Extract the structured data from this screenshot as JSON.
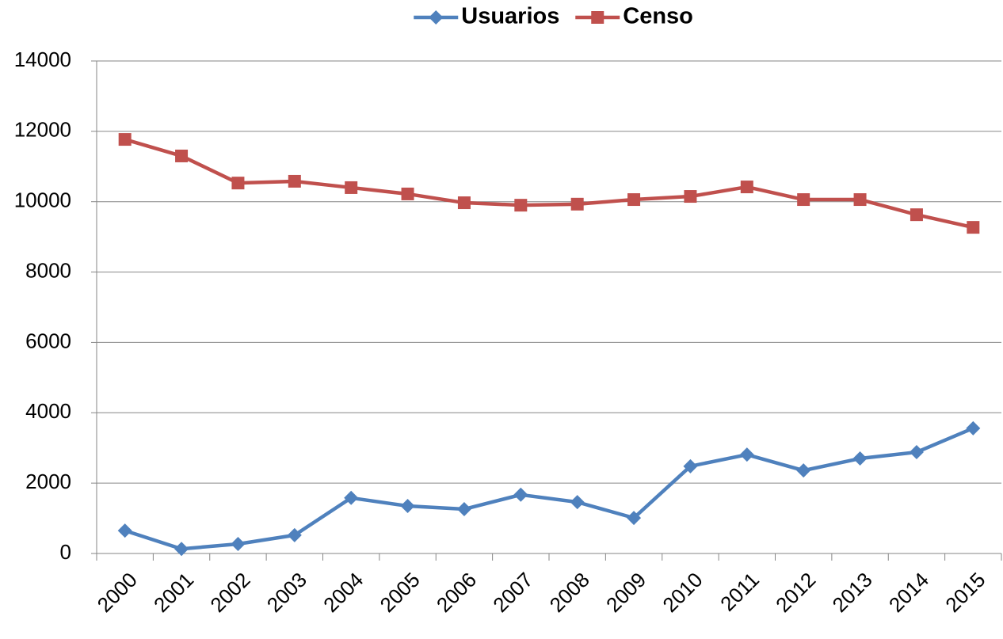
{
  "chart_data": {
    "type": "line",
    "categories": [
      "2000",
      "2001",
      "2002",
      "2003",
      "2004",
      "2005",
      "2006",
      "2007",
      "2008",
      "2009",
      "2010",
      "2011",
      "2012",
      "2013",
      "2014",
      "2015"
    ],
    "series": [
      {
        "name": "Usuarios",
        "color": "#4f81bd",
        "marker": "diamond",
        "values": [
          650,
          130,
          270,
          520,
          1580,
          1350,
          1260,
          1670,
          1460,
          1010,
          2480,
          2810,
          2360,
          2700,
          2880,
          3560
        ]
      },
      {
        "name": "Censo",
        "color": "#c0504d",
        "marker": "square",
        "values": [
          11770,
          11300,
          10530,
          10580,
          10400,
          10220,
          9970,
          9900,
          9930,
          10060,
          10150,
          10420,
          10060,
          10060,
          9630,
          9270
        ]
      }
    ],
    "ylim": [
      0,
      14000
    ],
    "yticks": [
      0,
      2000,
      4000,
      6000,
      8000,
      10000,
      12000,
      14000
    ],
    "grid": true,
    "legend": "top"
  }
}
